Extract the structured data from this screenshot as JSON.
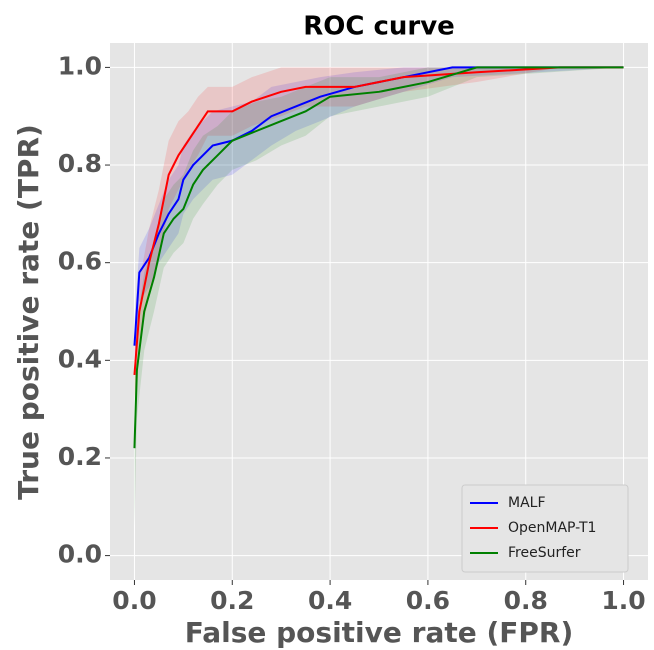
{
  "chart_data": {
    "type": "line",
    "title": "ROC curve",
    "x_label": "False positive rate (FPR)",
    "y_label": "True positive rate (TPR)",
    "xlim": [
      -0.05,
      1.05
    ],
    "ylim": [
      -0.05,
      1.05
    ],
    "xticks": [
      {
        "value": 0,
        "label": "0.0"
      },
      {
        "value": 0.2,
        "label": "0.2"
      },
      {
        "value": 0.4,
        "label": "0.4"
      },
      {
        "value": 0.6,
        "label": "0.6"
      },
      {
        "value": 0.8,
        "label": "0.8"
      },
      {
        "value": 1,
        "label": "1.0"
      }
    ],
    "yticks": [
      {
        "value": 0,
        "label": "0.0"
      },
      {
        "value": 0.2,
        "label": "0.2"
      },
      {
        "value": 0.4,
        "label": "0.4"
      },
      {
        "value": 0.6,
        "label": "0.6"
      },
      {
        "value": 0.8,
        "label": "0.8"
      },
      {
        "value": 1,
        "label": "1.0"
      }
    ],
    "grid": true,
    "legend": "lower right",
    "series": [
      {
        "name": "MALF",
        "color": "#0000ff",
        "x": [
          0,
          0.01,
          0.03,
          0.05,
          0.07,
          0.09,
          0.1,
          0.12,
          0.14,
          0.16,
          0.2,
          0.24,
          0.28,
          0.33,
          0.38,
          0.45,
          0.55,
          0.65,
          1.0
        ],
        "values": [
          0.43,
          0.58,
          0.61,
          0.66,
          0.7,
          0.73,
          0.77,
          0.8,
          0.82,
          0.84,
          0.85,
          0.87,
          0.9,
          0.92,
          0.94,
          0.96,
          0.98,
          1.0,
          1.0
        ],
        "lower": [
          0.38,
          0.52,
          0.55,
          0.6,
          0.63,
          0.66,
          0.7,
          0.73,
          0.75,
          0.77,
          0.78,
          0.81,
          0.84,
          0.87,
          0.89,
          0.92,
          0.95,
          0.98,
          1.0
        ],
        "upper": [
          0.48,
          0.63,
          0.67,
          0.72,
          0.77,
          0.8,
          0.84,
          0.87,
          0.89,
          0.91,
          0.92,
          0.93,
          0.96,
          0.97,
          0.98,
          0.99,
          1.0,
          1.0,
          1.0
        ]
      },
      {
        "name": "OpenMAP-T1",
        "color": "#ff0000",
        "x": [
          0,
          0.01,
          0.03,
          0.05,
          0.07,
          0.09,
          0.11,
          0.13,
          0.15,
          0.2,
          0.24,
          0.3,
          0.35,
          0.45,
          0.55,
          0.7,
          0.87,
          1.0
        ],
        "values": [
          0.37,
          0.5,
          0.6,
          0.68,
          0.78,
          0.82,
          0.85,
          0.88,
          0.91,
          0.91,
          0.93,
          0.95,
          0.96,
          0.96,
          0.98,
          0.99,
          1.0,
          1.0
        ],
        "lower": [
          0.32,
          0.44,
          0.53,
          0.61,
          0.71,
          0.75,
          0.79,
          0.82,
          0.86,
          0.86,
          0.88,
          0.9,
          0.92,
          0.92,
          0.95,
          0.97,
          1.0,
          1.0
        ],
        "upper": [
          0.42,
          0.56,
          0.67,
          0.75,
          0.85,
          0.89,
          0.91,
          0.94,
          0.96,
          0.96,
          0.98,
          1.0,
          1.0,
          1.0,
          1.0,
          1.0,
          1.0,
          1.0
        ]
      },
      {
        "name": "FreeSurfer",
        "color": "#008000",
        "x": [
          0,
          0.005,
          0.02,
          0.04,
          0.06,
          0.08,
          0.1,
          0.12,
          0.14,
          0.17,
          0.2,
          0.25,
          0.3,
          0.35,
          0.4,
          0.5,
          0.6,
          0.7,
          1.0
        ],
        "values": [
          0.22,
          0.38,
          0.5,
          0.57,
          0.66,
          0.69,
          0.71,
          0.76,
          0.79,
          0.82,
          0.85,
          0.87,
          0.89,
          0.91,
          0.94,
          0.95,
          0.97,
          1.0,
          1.0
        ],
        "lower": [
          0.06,
          0.28,
          0.42,
          0.5,
          0.59,
          0.62,
          0.64,
          0.69,
          0.72,
          0.76,
          0.79,
          0.81,
          0.84,
          0.86,
          0.9,
          0.92,
          0.94,
          0.98,
          1.0
        ],
        "upper": [
          0.38,
          0.48,
          0.58,
          0.64,
          0.73,
          0.76,
          0.78,
          0.83,
          0.86,
          0.88,
          0.91,
          0.93,
          0.94,
          0.96,
          0.98,
          0.98,
          1.0,
          1.0,
          1.0
        ]
      }
    ]
  }
}
